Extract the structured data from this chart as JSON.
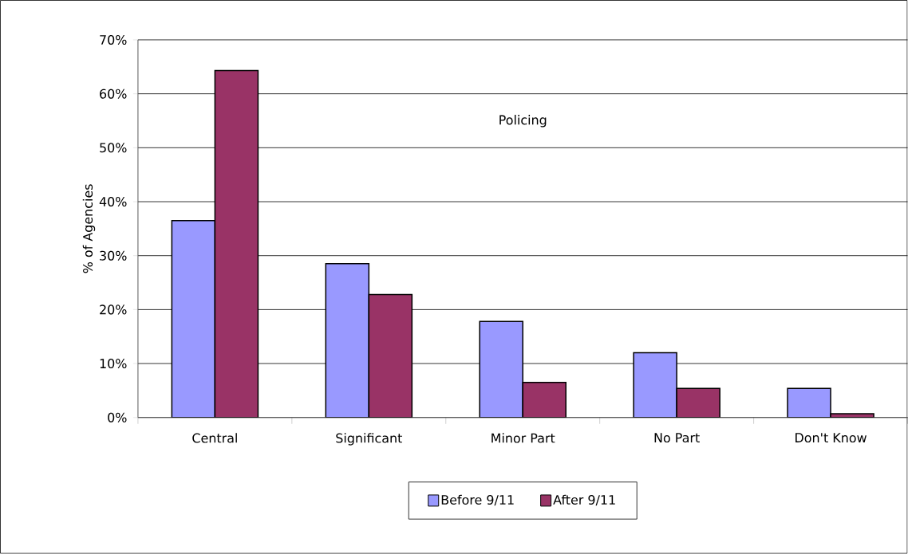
{
  "chart_data": {
    "type": "bar",
    "ylabel": "% of Agencies",
    "annotations": [
      "Policing"
    ],
    "categories": [
      "Central",
      "Significant",
      "Minor Part",
      "No Part",
      "Don't Know"
    ],
    "series": [
      {
        "name": "Before 9/11",
        "color": "#9999ff",
        "values": [
          36.5,
          28.5,
          17.8,
          12.0,
          5.4
        ]
      },
      {
        "name": "After 9/11",
        "color": "#993366",
        "values": [
          64.3,
          22.8,
          6.5,
          5.4,
          0.7
        ]
      }
    ],
    "ylim": [
      0,
      70
    ],
    "yticks": [
      {
        "value": 0,
        "label": "0%"
      },
      {
        "value": 10,
        "label": "10%"
      },
      {
        "value": 20,
        "label": "20%"
      },
      {
        "value": 30,
        "label": "30%"
      },
      {
        "value": 40,
        "label": "40%"
      },
      {
        "value": 50,
        "label": "50%"
      },
      {
        "value": 60,
        "label": "60%"
      },
      {
        "value": 70,
        "label": "70%"
      }
    ],
    "grid": "y",
    "legend": "bottom"
  }
}
